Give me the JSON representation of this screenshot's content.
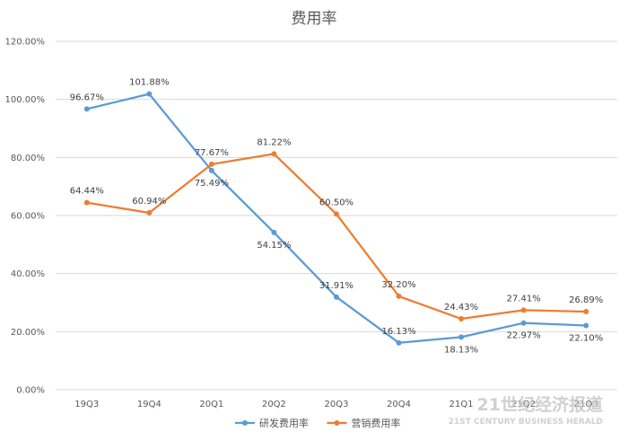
{
  "chart_data": {
    "type": "line",
    "title": "费用率",
    "categories": [
      "19Q3",
      "19Q4",
      "20Q1",
      "20Q2",
      "20Q3",
      "20Q4",
      "21Q1",
      "21Q2",
      "21Q3"
    ],
    "ylim": [
      0,
      120
    ],
    "yticks": [
      0,
      20,
      40,
      60,
      80,
      100,
      120
    ],
    "ytick_labels": [
      "0.00%",
      "20.00%",
      "40.00%",
      "60.00%",
      "80.00%",
      "100.00%",
      "120.00%"
    ],
    "grid": true,
    "legend_position": "bottom",
    "series": [
      {
        "name": "研发费用率",
        "color": "#5b9bd5",
        "values": [
          96.67,
          101.88,
          75.49,
          54.15,
          31.91,
          16.13,
          18.13,
          22.97,
          22.1
        ],
        "labels": [
          "96.67%",
          "101.88%",
          "75.49%",
          "54.15%",
          "31.91%",
          "16.13%",
          "18.13%",
          "22.97%",
          "22.10%"
        ],
        "label_side": [
          "above",
          "above",
          "below",
          "below",
          "above",
          "above",
          "below",
          "below",
          "below"
        ]
      },
      {
        "name": "营销费用率",
        "color": "#ed7d31",
        "values": [
          64.44,
          60.94,
          77.67,
          81.22,
          60.5,
          32.2,
          24.43,
          27.41,
          26.89
        ],
        "labels": [
          "64.44%",
          "60.94%",
          "77.67%",
          "81.22%",
          "60.50%",
          "32.20%",
          "24.43%",
          "27.41%",
          "26.89%"
        ],
        "label_side": [
          "above",
          "above",
          "above",
          "above",
          "above",
          "above",
          "above",
          "above",
          "above"
        ]
      }
    ]
  },
  "watermark": {
    "text_cn": "21世纪经济报道",
    "text_en": "21ST CENTURY BUSINESS HERALD"
  }
}
